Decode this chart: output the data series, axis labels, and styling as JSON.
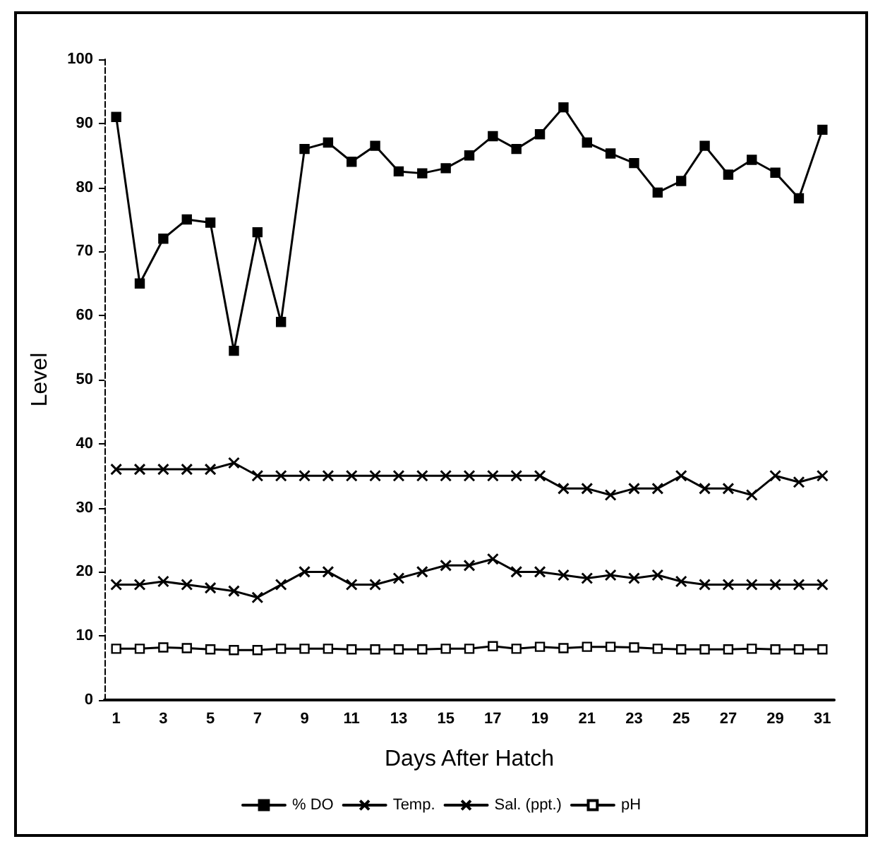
{
  "chart_data": {
    "type": "line",
    "xlabel": "Days After Hatch",
    "ylabel": "Level",
    "x": [
      1,
      2,
      3,
      4,
      5,
      6,
      7,
      8,
      9,
      10,
      11,
      12,
      13,
      14,
      15,
      16,
      17,
      18,
      19,
      20,
      21,
      22,
      23,
      24,
      25,
      26,
      27,
      28,
      29,
      30,
      31
    ],
    "xlim": [
      0.5,
      31.5
    ],
    "xticks": [
      1,
      3,
      5,
      7,
      9,
      11,
      13,
      15,
      17,
      19,
      21,
      23,
      25,
      27,
      29,
      31
    ],
    "ylim": [
      0,
      100
    ],
    "yticks": [
      0,
      10,
      20,
      30,
      40,
      50,
      60,
      70,
      80,
      90,
      100
    ],
    "grid": false,
    "legend": "bottom",
    "line_style": "solid",
    "series": [
      {
        "name": "% DO",
        "color": "#000000",
        "marker": "square",
        "values": [
          91,
          65,
          72,
          75,
          74.5,
          54.5,
          73,
          59,
          86,
          87,
          84,
          86.5,
          82.5,
          82.2,
          83,
          85,
          88,
          86,
          88.3,
          92.5,
          87,
          85.3,
          83.8,
          79.2,
          81,
          86.5,
          82,
          84.3,
          82.3,
          78.3,
          89
        ]
      },
      {
        "name": "Temp.",
        "color": "#000000",
        "marker": "cross",
        "values": [
          18,
          18,
          18.5,
          18,
          17.5,
          17,
          16,
          18,
          20,
          20,
          18,
          18,
          19,
          20,
          21,
          21,
          22,
          20,
          20,
          19.5,
          19,
          19.5,
          19,
          19.5,
          18.5,
          18,
          18,
          18,
          18,
          18,
          18
        ]
      },
      {
        "name": "Sal. (ppt.)",
        "color": "#000000",
        "marker": "cross",
        "values": [
          36,
          36,
          36,
          36,
          36,
          37,
          35,
          35,
          35,
          35,
          35,
          35,
          35,
          35,
          35,
          35,
          35,
          35,
          35,
          33,
          33,
          32,
          33,
          33,
          35,
          33,
          33,
          32,
          35,
          34,
          35
        ]
      },
      {
        "name": "pH",
        "color": "#000000",
        "marker": "square",
        "values": [
          8,
          8,
          8.2,
          8.1,
          7.9,
          7.8,
          7.8,
          8,
          8,
          8,
          7.9,
          7.9,
          7.9,
          7.9,
          8,
          8,
          8.4,
          8,
          8.3,
          8.1,
          8.3,
          8.3,
          8.2,
          8,
          7.9,
          7.9,
          7.9,
          8,
          7.9,
          7.9,
          7.9
        ]
      }
    ]
  }
}
